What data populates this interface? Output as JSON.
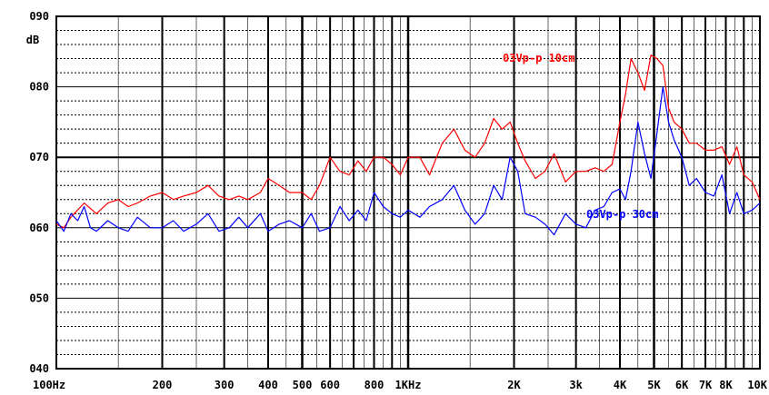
{
  "chart_data": {
    "type": "line",
    "title": "",
    "xlabel": "",
    "ylabel": "dB",
    "x_scale": "log",
    "xlim": [
      100,
      10000
    ],
    "ylim": [
      40,
      90
    ],
    "y_ticks": [
      {
        "value": 90,
        "label": "090"
      },
      {
        "value": 80,
        "label": "080"
      },
      {
        "value": 70,
        "label": "070"
      },
      {
        "value": 60,
        "label": "060"
      },
      {
        "value": 50,
        "label": "050"
      },
      {
        "value": 40,
        "label": "040"
      }
    ],
    "x_ticks": [
      {
        "value": 100,
        "label": "100Hz"
      },
      {
        "value": 200,
        "label": "200"
      },
      {
        "value": 300,
        "label": "300"
      },
      {
        "value": 400,
        "label": "400"
      },
      {
        "value": 500,
        "label": "500"
      },
      {
        "value": 600,
        "label": "600"
      },
      {
        "value": 800,
        "label": "800"
      },
      {
        "value": 1000,
        "label": "1KHz"
      },
      {
        "value": 2000,
        "label": "2K"
      },
      {
        "value": 3000,
        "label": "3k"
      },
      {
        "value": 4000,
        "label": "4K"
      },
      {
        "value": 5000,
        "label": "5K"
      },
      {
        "value": 6000,
        "label": "6K"
      },
      {
        "value": 7000,
        "label": "7K"
      },
      {
        "value": 8000,
        "label": "8K"
      },
      {
        "value": 10000,
        "label": "10K"
      }
    ],
    "grid": true,
    "series": [
      {
        "name": "03Vp-p 10cm",
        "color": "#ff0000",
        "x": [
          100,
          105,
          110,
          120,
          130,
          140,
          150,
          160,
          170,
          185,
          200,
          215,
          230,
          250,
          270,
          290,
          310,
          330,
          350,
          380,
          400,
          430,
          460,
          500,
          530,
          560,
          600,
          640,
          680,
          720,
          760,
          800,
          850,
          900,
          950,
          1000,
          1080,
          1150,
          1250,
          1350,
          1450,
          1550,
          1650,
          1750,
          1850,
          1950,
          2050,
          2150,
          2300,
          2450,
          2600,
          2800,
          3000,
          3200,
          3400,
          3600,
          3800,
          4000,
          4150,
          4300,
          4500,
          4700,
          4900,
          5100,
          5300,
          5500,
          5700,
          6000,
          6300,
          6600,
          7000,
          7400,
          7800,
          8200,
          8600,
          9000,
          9500,
          10000
        ],
        "y": [
          60.5,
          60,
          61.5,
          63.5,
          62,
          63.5,
          64,
          63,
          63.5,
          64.5,
          65,
          64,
          64.5,
          65,
          66,
          64.5,
          64,
          64.5,
          64,
          65,
          67,
          66,
          65,
          65,
          64,
          66,
          70,
          68,
          67.5,
          69.5,
          68,
          70,
          70,
          69,
          67.5,
          70,
          70,
          67.5,
          72,
          74,
          71,
          70,
          72,
          75.5,
          74,
          75,
          72,
          69.5,
          67,
          68,
          70.5,
          66.5,
          68,
          68,
          68.5,
          68,
          69,
          75,
          79,
          84,
          82,
          79.5,
          84.5,
          84,
          83,
          77,
          75,
          74,
          72,
          72,
          71,
          71,
          71.5,
          69,
          71.5,
          67.5,
          66.5,
          64
        ]
      },
      {
        "name": "03Vp-p 30cm",
        "color": "#0000ff",
        "x": [
          100,
          105,
          110,
          115,
          120,
          125,
          130,
          140,
          150,
          160,
          170,
          185,
          200,
          215,
          230,
          250,
          270,
          290,
          310,
          330,
          350,
          380,
          400,
          430,
          460,
          500,
          530,
          560,
          600,
          640,
          680,
          720,
          760,
          800,
          850,
          900,
          950,
          1000,
          1080,
          1150,
          1250,
          1350,
          1450,
          1550,
          1650,
          1750,
          1850,
          1950,
          2050,
          2150,
          2300,
          2450,
          2600,
          2800,
          3000,
          3200,
          3400,
          3600,
          3800,
          4000,
          4150,
          4300,
          4500,
          4700,
          4900,
          5100,
          5300,
          5500,
          5700,
          6000,
          6300,
          6600,
          7000,
          7400,
          7800,
          8200,
          8600,
          9000,
          9500,
          10000
        ],
        "y": [
          61,
          59.5,
          62,
          61,
          63,
          60,
          59.5,
          61,
          60,
          59.5,
          61.5,
          60,
          60,
          61,
          59.5,
          60.5,
          62,
          59.5,
          60,
          61.5,
          60,
          62,
          59.5,
          60.5,
          61,
          60,
          62,
          59.5,
          60,
          63,
          61,
          62.5,
          61,
          65,
          63,
          62,
          61.5,
          62.5,
          61.5,
          63,
          64,
          66,
          62.5,
          60.5,
          62,
          66,
          64,
          70,
          68,
          62,
          61.5,
          60.5,
          59,
          62,
          60.5,
          60,
          62.5,
          63,
          65,
          65.5,
          64,
          68,
          75,
          70.5,
          67,
          73.5,
          80,
          75,
          72.5,
          70,
          66,
          67,
          65,
          64.5,
          67.5,
          62,
          65,
          62,
          62.5,
          63.5
        ]
      }
    ]
  }
}
